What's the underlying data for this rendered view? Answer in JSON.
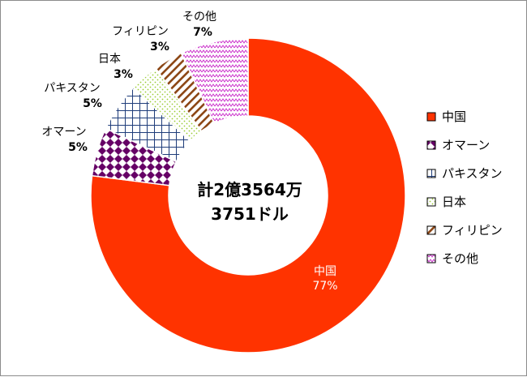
{
  "chart_data": {
    "type": "pie",
    "variant": "donut",
    "center_text": [
      "計2億3564万",
      "3751ドル"
    ],
    "slices": [
      {
        "label": "中国",
        "percent_label": "77%",
        "value": 77,
        "color": "#ff3300",
        "pattern": "solid"
      },
      {
        "label": "オマーン",
        "percent_label": "5%",
        "value": 5,
        "color": "#660066",
        "pattern": "checker"
      },
      {
        "label": "パキスタン",
        "percent_label": "5%",
        "value": 5,
        "color": "#1f3d7a",
        "pattern": "grid"
      },
      {
        "label": "日本",
        "percent_label": "3%",
        "value": 3,
        "color": "#99cc33",
        "pattern": "dots"
      },
      {
        "label": "フィリピン",
        "percent_label": "3%",
        "value": 3,
        "color": "#8b4513",
        "pattern": "diagonal"
      },
      {
        "label": "その他",
        "percent_label": "7%",
        "value": 7,
        "color": "#cc33cc",
        "pattern": "zigzag"
      }
    ],
    "legend_position": "right"
  }
}
